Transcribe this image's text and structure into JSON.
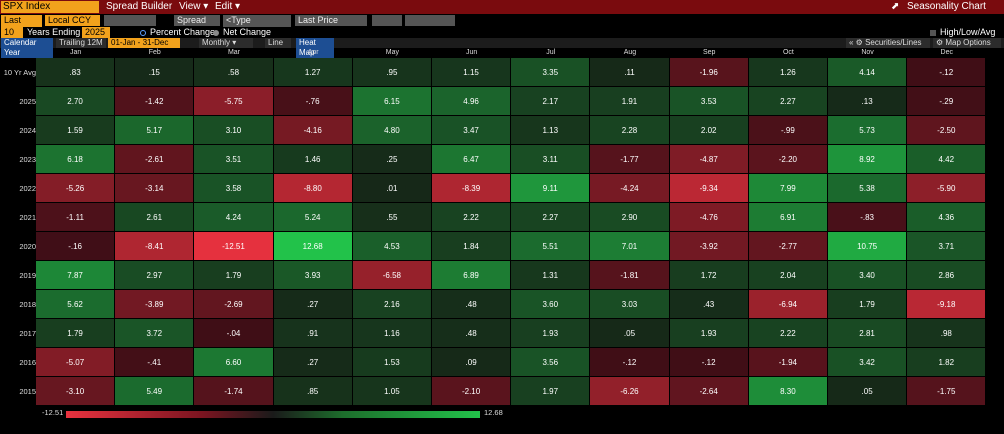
{
  "toolbar": {
    "security": "SPX Index",
    "menu_spread_builder": "Spread Builder",
    "menu_view": "View ▾",
    "menu_edit": "Edit ▾",
    "title": "Seasonality Chart",
    "field1": "Last Price",
    "field2": "Local CCY",
    "field3": "",
    "field4": "Spread",
    "type_security_placeholder": "<Type security>",
    "field5": "Last Price",
    "years": "10",
    "years_ending_label": "Years Ending",
    "year_end": "2025",
    "option_percent": "Percent Change",
    "option_net": "Net Change",
    "high_low_avg": "High/Low/Avg",
    "tab_calendar_year": "Calendar Year",
    "tab_trailing": "Trailing 12M",
    "range": "01-Jan - 31-Dec",
    "periodicity": "Monthly ▾",
    "tab_line": "Line",
    "tab_heatmap": "Heat Map",
    "securities_lines": "« ⚙ Securities/Lines",
    "map_options": "⚙ Map Options"
  },
  "colors": {
    "ticker_bg": "#f2a21c",
    "top_bar": "#7a0b0e",
    "selected_tab": "#1d4e93"
  },
  "months": [
    "Jan",
    "Feb",
    "Mar",
    "Apr",
    "May",
    "Jun",
    "Jul",
    "Aug",
    "Sep",
    "Oct",
    "Nov",
    "Dec"
  ],
  "rows": [
    {
      "label": "10 Yr Avg",
      "values": [
        ".83",
        ".15",
        ".58",
        "1.27",
        ".95",
        "1.15",
        "3.35",
        ".11",
        "-1.96",
        "1.26",
        "4.14",
        "-.12"
      ]
    },
    {
      "label": "2025",
      "values": [
        "2.70",
        "-1.42",
        "-5.75",
        "-.76",
        "6.15",
        "4.96",
        "2.17",
        "1.91",
        "3.53",
        "2.27",
        ".13",
        "-.29"
      ]
    },
    {
      "label": "2024",
      "values": [
        "1.59",
        "5.17",
        "3.10",
        "-4.16",
        "4.80",
        "3.47",
        "1.13",
        "2.28",
        "2.02",
        "-.99",
        "5.73",
        "-2.50"
      ]
    },
    {
      "label": "2023",
      "values": [
        "6.18",
        "-2.61",
        "3.51",
        "1.46",
        ".25",
        "6.47",
        "3.11",
        "-1.77",
        "-4.87",
        "-2.20",
        "8.92",
        "4.42"
      ]
    },
    {
      "label": "2022",
      "values": [
        "-5.26",
        "-3.14",
        "3.58",
        "-8.80",
        ".01",
        "-8.39",
        "9.11",
        "-4.24",
        "-9.34",
        "7.99",
        "5.38",
        "-5.90"
      ]
    },
    {
      "label": "2021",
      "values": [
        "-1.11",
        "2.61",
        "4.24",
        "5.24",
        ".55",
        "2.22",
        "2.27",
        "2.90",
        "-4.76",
        "6.91",
        "-.83",
        "4.36"
      ]
    },
    {
      "label": "2020",
      "values": [
        "-.16",
        "-8.41",
        "-12.51",
        "12.68",
        "4.53",
        "1.84",
        "5.51",
        "7.01",
        "-3.92",
        "-2.77",
        "10.75",
        "3.71"
      ]
    },
    {
      "label": "2019",
      "values": [
        "7.87",
        "2.97",
        "1.79",
        "3.93",
        "-6.58",
        "6.89",
        "1.31",
        "-1.81",
        "1.72",
        "2.04",
        "3.40",
        "2.86"
      ]
    },
    {
      "label": "2018",
      "values": [
        "5.62",
        "-3.89",
        "-2.69",
        ".27",
        "2.16",
        ".48",
        "3.60",
        "3.03",
        ".43",
        "-6.94",
        "1.79",
        "-9.18"
      ]
    },
    {
      "label": "2017",
      "values": [
        "1.79",
        "3.72",
        "-.04",
        ".91",
        "1.16",
        ".48",
        "1.93",
        ".05",
        "1.93",
        "2.22",
        "2.81",
        ".98"
      ]
    },
    {
      "label": "2016",
      "values": [
        "-5.07",
        "-.41",
        "6.60",
        ".27",
        "1.53",
        ".09",
        "3.56",
        "-.12",
        "-.12",
        "-1.94",
        "3.42",
        "1.82"
      ]
    },
    {
      "label": "2015",
      "values": [
        "-3.10",
        "5.49",
        "-1.74",
        ".85",
        "1.05",
        "-2.10",
        "1.97",
        "-6.26",
        "-2.64",
        "8.30",
        ".05",
        "-1.75"
      ]
    }
  ],
  "legend": {
    "min": "-12.51",
    "max": "12.68"
  }
}
